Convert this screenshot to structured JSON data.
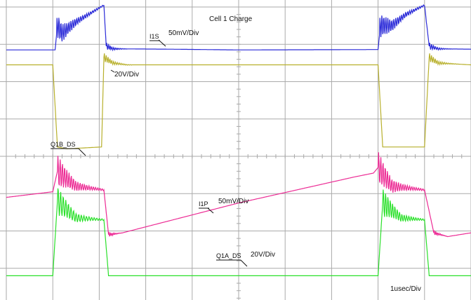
{
  "title": "Cell 1 Charge",
  "scales": {
    "i1s": "50mV/Div",
    "upper_volt": "20V/Div",
    "i1p": "50mV/Div",
    "lower_volt": "20V/Div",
    "time": "1usec/Div"
  },
  "colors": {
    "background": "#ffffff",
    "grid": "#aaaaaa",
    "I1S": "#2a2ad8",
    "Q1B_DS": "#b8b02c",
    "I1P": "#ec2a94",
    "Q1A_DS": "#2ae02a"
  },
  "chart_data": {
    "type": "line",
    "title": "Cell 1 Charge",
    "xlabel": "1usec/Div",
    "ylabel": "",
    "grid": true,
    "x_unit": "div",
    "xlim": [
      0,
      10
    ],
    "ylim": [
      0,
      8
    ],
    "series": [
      {
        "name": "I1S",
        "scale": "50mV/Div",
        "points": [
          [
            0,
            6.85
          ],
          [
            1.05,
            6.85
          ],
          [
            1.1,
            7.5
          ],
          [
            1.2,
            7.3
          ],
          [
            1.5,
            7.6
          ],
          [
            1.9,
            7.9
          ],
          [
            2.1,
            8.05
          ],
          [
            2.15,
            6.95
          ],
          [
            2.3,
            6.88
          ],
          [
            3.5,
            6.87
          ],
          [
            5.0,
            6.85
          ],
          [
            8.0,
            6.86
          ],
          [
            8.05,
            7.5
          ],
          [
            8.3,
            7.5
          ],
          [
            8.6,
            7.8
          ],
          [
            9.0,
            8.05
          ],
          [
            9.1,
            6.95
          ],
          [
            9.3,
            6.88
          ],
          [
            10,
            6.87
          ]
        ]
      },
      {
        "name": "Q1B_DS",
        "scale": "20V/Div",
        "points": [
          [
            0,
            6.45
          ],
          [
            1.0,
            6.45
          ],
          [
            1.1,
            4.25
          ],
          [
            1.3,
            4.2
          ],
          [
            2.05,
            4.25
          ],
          [
            2.1,
            6.65
          ],
          [
            2.3,
            6.5
          ],
          [
            2.6,
            6.45
          ],
          [
            8.0,
            6.45
          ],
          [
            8.1,
            4.25
          ],
          [
            9.0,
            4.25
          ],
          [
            9.1,
            6.65
          ],
          [
            9.3,
            6.5
          ],
          [
            10,
            6.45
          ]
        ]
      },
      {
        "name": "I1P",
        "scale": "50mV/Div",
        "points": [
          [
            0,
            2.9
          ],
          [
            1.0,
            3.05
          ],
          [
            1.1,
            3.6
          ],
          [
            1.5,
            3.2
          ],
          [
            2.1,
            3.1
          ],
          [
            2.2,
            1.9
          ],
          [
            2.5,
            1.95
          ],
          [
            5.0,
            2.75
          ],
          [
            7.5,
            3.45
          ],
          [
            7.9,
            3.55
          ],
          [
            8.0,
            3.7
          ],
          [
            8.3,
            3.2
          ],
          [
            9.0,
            3.1
          ],
          [
            9.2,
            1.95
          ],
          [
            9.5,
            1.85
          ],
          [
            10,
            1.95
          ]
        ]
      },
      {
        "name": "Q1A_DS",
        "scale": "20V/Div",
        "points": [
          [
            0,
            0.8
          ],
          [
            1.0,
            0.8
          ],
          [
            1.1,
            2.8
          ],
          [
            1.5,
            2.35
          ],
          [
            2.1,
            2.3
          ],
          [
            2.2,
            0.8
          ],
          [
            5.0,
            0.8
          ],
          [
            8.0,
            0.8
          ],
          [
            8.1,
            2.75
          ],
          [
            8.5,
            2.35
          ],
          [
            9.0,
            2.3
          ],
          [
            9.1,
            0.8
          ],
          [
            10,
            0.8
          ]
        ]
      }
    ]
  }
}
